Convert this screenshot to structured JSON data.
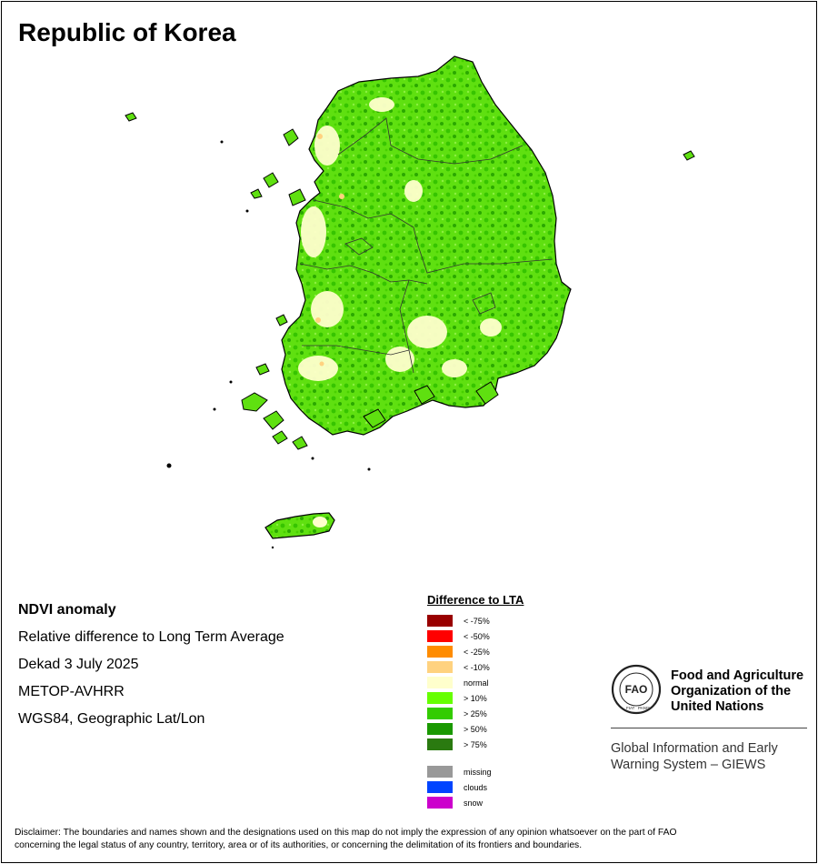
{
  "title": "Republic of Korea",
  "info": {
    "heading": "NDVI anomaly",
    "line1": "Relative difference to Long Term Average",
    "line2": "Dekad 3 July 2025",
    "line3": "METOP-AVHRR",
    "line4": "WGS84, Geographic Lat/Lon"
  },
  "legend": {
    "title": "Difference to LTA",
    "classes": [
      {
        "label": "< -75%",
        "color": "#990000"
      },
      {
        "label": "< -50%",
        "color": "#ff0000"
      },
      {
        "label": "< -25%",
        "color": "#ff8c00"
      },
      {
        "label": "< -10%",
        "color": "#ffd27f"
      },
      {
        "label": "normal",
        "color": "#ffffcc"
      },
      {
        "label": "> 10%",
        "color": "#66ff00"
      },
      {
        "label": "> 25%",
        "color": "#33cc00"
      },
      {
        "label": "> 50%",
        "color": "#1a9900"
      },
      {
        "label": "> 75%",
        "color": "#2a7a10"
      }
    ],
    "extra": [
      {
        "label": "missing",
        "color": "#999999"
      },
      {
        "label": "clouds",
        "color": "#0044ff"
      },
      {
        "label": "snow",
        "color": "#cc00cc"
      }
    ]
  },
  "fao": {
    "name_line1": "Food and Agriculture",
    "name_line2": "Organization of the",
    "name_line3": "United Nations",
    "giews_line1": "Global Information and Early",
    "giews_line2": "Warning System – GIEWS",
    "logo_text": "FAO",
    "logo_motto_left": "FIAT",
    "logo_motto_right": "PANIS"
  },
  "disclaimer": {
    "line1": "Disclaimer: The boundaries and names shown and the designations used on this map do not imply the expression of any opinion whatsoever on the part of FAO",
    "line2": "concerning the legal status of any country, territory, area or of its authorities, or concerning the delimitation of its frontiers and boundaries."
  }
}
